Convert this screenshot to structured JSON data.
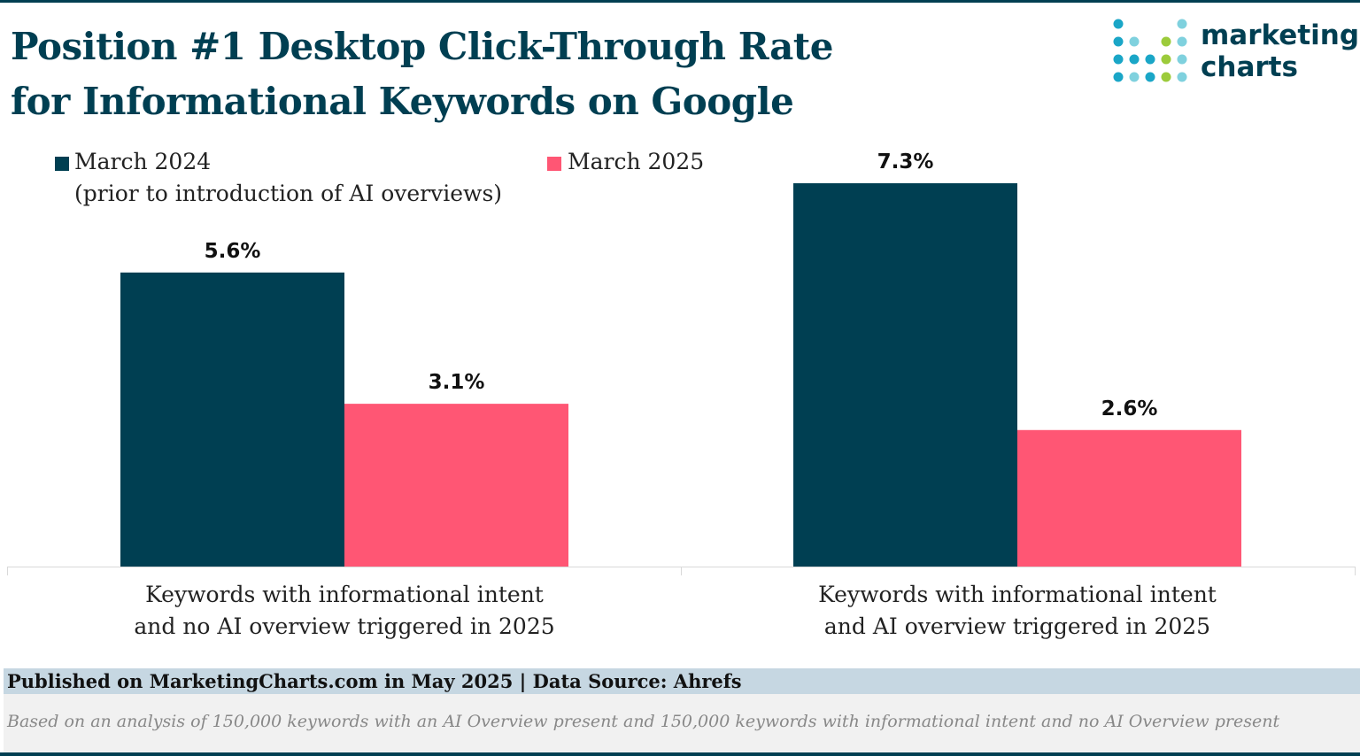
{
  "title": {
    "line1": "Position #1 Desktop Click-Through Rate",
    "line2": "for Informational Keywords on Google"
  },
  "logo": {
    "line1": "marketing",
    "line2": "charts",
    "dot_colors": [
      "#1aa6c7",
      "#7fd1de",
      "#9ccb3b",
      "#003f52"
    ]
  },
  "colors": {
    "title": "#003f52",
    "march_2024": "#003f52",
    "march_2025": "#ff5674"
  },
  "chart_data": {
    "type": "bar",
    "title": "Position #1 Desktop Click-Through Rate for Informational Keywords on Google",
    "categories": [
      [
        "Keywords with informational intent",
        "and no AI overview triggered in 2025"
      ],
      [
        "Keywords with informational intent",
        "and AI overview triggered in 2025"
      ]
    ],
    "series": [
      {
        "name": "March 2024",
        "note": "(prior to introduction of AI overviews)",
        "color": "#003f52",
        "values": [
          5.6,
          7.3
        ],
        "labels": [
          "5.6%",
          "7.3%"
        ]
      },
      {
        "name": "March 2025",
        "color": "#ff5674",
        "values": [
          3.1,
          2.6
        ],
        "labels": [
          "3.1%",
          "2.6%"
        ]
      }
    ],
    "unit": "%",
    "ylim": [
      0,
      7.3
    ],
    "grid": false,
    "legend": "top-left"
  },
  "footer": {
    "published": "Published on MarketingCharts.com in May 2025 | Data Source: Ahrefs",
    "note": "Based on an analysis of 150,000 keywords with an AI Overview present and 150,000 keywords with informational intent and no AI Overview present"
  }
}
